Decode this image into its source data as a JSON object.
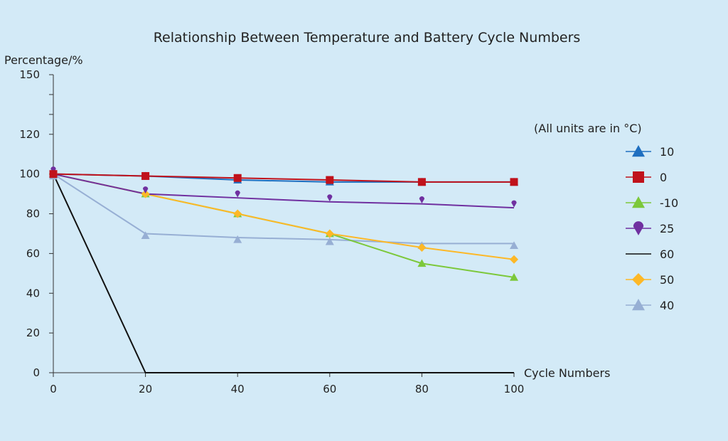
{
  "chart_data": {
    "type": "line",
    "title": "Relationship Between Temperature and Battery Cycle Numbers",
    "xlabel": "Cycle Numbers",
    "ylabel": "Percentage/%",
    "xlim": [
      0,
      100
    ],
    "ylim": [
      0,
      150
    ],
    "x_ticks": [
      "0",
      "20",
      "40",
      "60",
      "80",
      "100"
    ],
    "y_ticks": [
      "0",
      "20",
      "40",
      "60",
      "80",
      "100",
      "120",
      "150"
    ],
    "legend_title": "(All units are in °C)",
    "legend_position": "right",
    "x": [
      0,
      20,
      40,
      60,
      80,
      100
    ],
    "series": [
      {
        "name": "10",
        "color": "#1f6fc0",
        "marker": "triangle",
        "values": [
          100,
          99,
          97,
          96,
          96,
          96
        ],
        "points": [
          100,
          99,
          97,
          96,
          96,
          96
        ]
      },
      {
        "name": "0",
        "color": "#c0121b",
        "marker": "square",
        "values": [
          100,
          99,
          98,
          97,
          96,
          96
        ],
        "points": [
          100,
          99,
          98,
          97,
          96,
          96
        ]
      },
      {
        "name": "-10",
        "color": "#7cc83a",
        "marker": "triangle",
        "values": [
          100,
          90,
          80,
          70,
          55,
          48
        ],
        "points": [
          100,
          90,
          80,
          70,
          55,
          48
        ]
      },
      {
        "name": "25",
        "color": "#7030a0",
        "marker": "pin",
        "values": [
          100,
          90,
          88,
          86,
          85,
          83
        ],
        "points": [
          102,
          92,
          90,
          88,
          87,
          85
        ]
      },
      {
        "name": "60",
        "color": "#111111",
        "marker": "none",
        "values": [
          100,
          0,
          0,
          0,
          0,
          0
        ],
        "points": []
      },
      {
        "name": "50",
        "color": "#fdb827",
        "marker": "diamond",
        "values": [
          100,
          90,
          80,
          70,
          63,
          57
        ],
        "points": [
          100,
          90,
          80,
          70,
          63,
          57
        ]
      },
      {
        "name": "40",
        "color": "#97afd4",
        "marker": "triangle",
        "values": [
          100,
          70,
          68,
          67,
          65,
          65
        ],
        "points": [
          99,
          69,
          67,
          66,
          64,
          64
        ]
      }
    ]
  }
}
